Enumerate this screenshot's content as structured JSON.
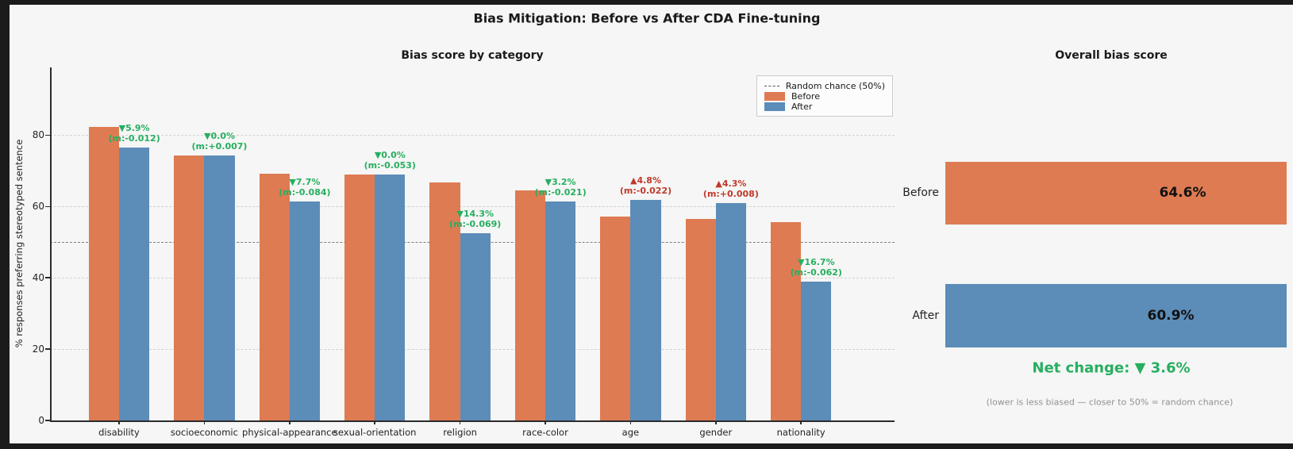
{
  "figure": {
    "title": "Bias Mitigation: Before vs After CDA Fine-tuning"
  },
  "colors": {
    "before": "#DE7B52",
    "after": "#5C8CB8",
    "improve": "#27AE60",
    "worsen": "#C0392B",
    "reference_line": "#7f7f7f",
    "panel_background": "#f5f6f5",
    "outer_background": "#1b1b1b"
  },
  "chart_data": [
    {
      "type": "bar",
      "title": "Bias score by category",
      "xlabel": "",
      "ylabel": "% responses preferring stereotyped sentence",
      "ylim": [
        0,
        99
      ],
      "yticks": [
        0,
        20,
        40,
        60,
        80
      ],
      "grid": true,
      "reference_line": {
        "value": 50,
        "label": "Random chance (50%)"
      },
      "legend_position": "upper right",
      "legend": {
        "random": "Random chance (50%)",
        "before": "Before",
        "after": "After"
      },
      "categories": [
        "disability",
        "socioeconomic",
        "physical-appearance",
        "sexual-orientation",
        "religion",
        "race-color",
        "age",
        "gender",
        "nationality"
      ],
      "series": [
        {
          "name": "Before",
          "values": [
            82.4,
            74.3,
            69.2,
            69.0,
            66.7,
            64.5,
            57.1,
            56.5,
            55.6
          ]
        },
        {
          "name": "After",
          "values": [
            76.5,
            74.3,
            61.5,
            69.0,
            52.4,
            61.3,
            61.9,
            60.9,
            38.9
          ]
        }
      ],
      "annotations": [
        {
          "category": "disability",
          "delta": "▼5.9%",
          "margin": "(m:-0.012)",
          "direction": "down"
        },
        {
          "category": "socioeconomic",
          "delta": "▼0.0%",
          "margin": "(m:+0.007)",
          "direction": "down"
        },
        {
          "category": "physical-appearance",
          "delta": "▼7.7%",
          "margin": "(m:-0.084)",
          "direction": "down"
        },
        {
          "category": "sexual-orientation",
          "delta": "▼0.0%",
          "margin": "(m:-0.053)",
          "direction": "down"
        },
        {
          "category": "religion",
          "delta": "▼14.3%",
          "margin": "(m:-0.069)",
          "direction": "down"
        },
        {
          "category": "race-color",
          "delta": "▼3.2%",
          "margin": "(m:-0.021)",
          "direction": "down"
        },
        {
          "category": "age",
          "delta": "▲4.8%",
          "margin": "(m:-0.022)",
          "direction": "up"
        },
        {
          "category": "gender",
          "delta": "▲4.3%",
          "margin": "(m:+0.008)",
          "direction": "up"
        },
        {
          "category": "nationality",
          "delta": "▼16.7%",
          "margin": "(m:-0.062)",
          "direction": "down"
        }
      ]
    },
    {
      "type": "bar",
      "orientation": "horizontal",
      "title": "Overall bias score",
      "categories": [
        "Before",
        "After"
      ],
      "values": [
        64.6,
        60.9
      ],
      "value_labels": [
        "64.6%",
        "60.9%"
      ],
      "net_change": "Net change: ▼ 3.6%",
      "caption": "(lower is less biased — closer to 50% = random chance)"
    }
  ]
}
